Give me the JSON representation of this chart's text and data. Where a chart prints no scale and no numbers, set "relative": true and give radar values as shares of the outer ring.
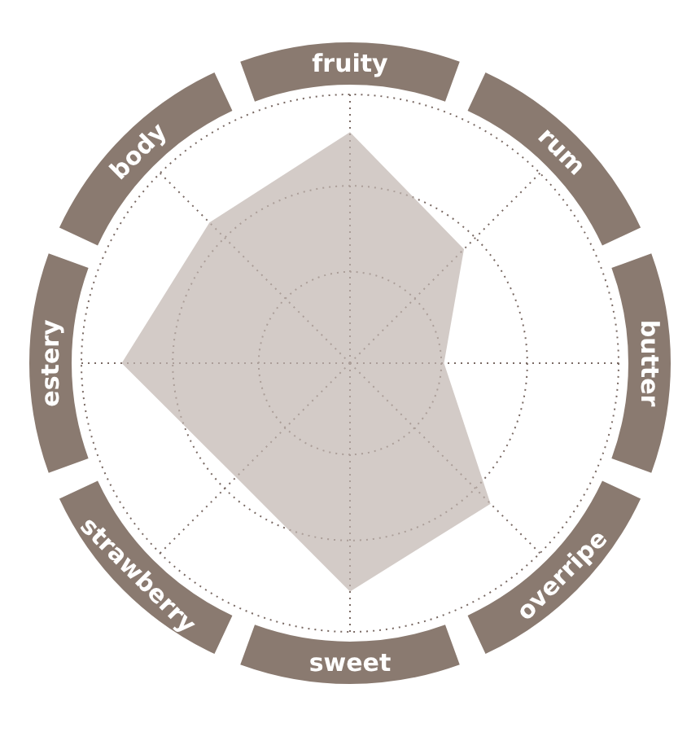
{
  "chart_data": {
    "type": "radar",
    "relative": true,
    "categories": [
      "fruity",
      "rum",
      "butter",
      "overripe",
      "sweet",
      "strawberry",
      "estery",
      "body"
    ],
    "series": [
      {
        "color": "#d3cbc7",
        "values": [
          0.86,
          0.6,
          0.35,
          0.74,
          0.85,
          0.6,
          0.85,
          0.74
        ]
      }
    ],
    "grid": true,
    "legend": false
  }
}
